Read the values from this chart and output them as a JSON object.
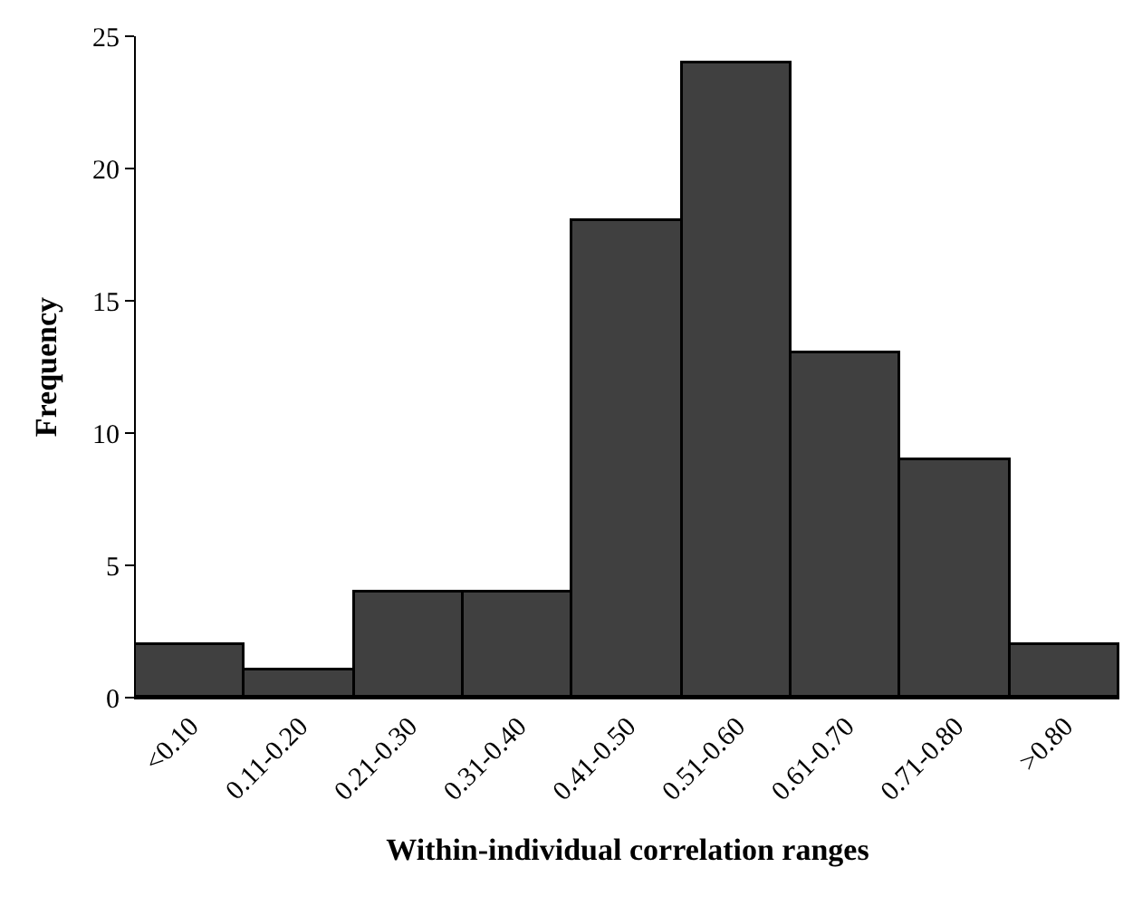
{
  "chart_data": {
    "type": "bar",
    "xlabel": "Within-individual correlation ranges",
    "ylabel": "Frequency",
    "categories": [
      "<0.10",
      "0.11-0.20",
      "0.21-0.30",
      "0.31-0.40",
      "0.41-0.50",
      "0.51-0.60",
      "0.61-0.70",
      "0.71-0.80",
      ">0.80"
    ],
    "values": [
      2,
      1,
      4,
      4,
      18,
      24,
      13,
      9,
      2
    ],
    "color": "#404040",
    "ylim": [
      0,
      25
    ],
    "yticks": [
      0,
      5,
      10,
      15,
      20,
      25
    ]
  }
}
